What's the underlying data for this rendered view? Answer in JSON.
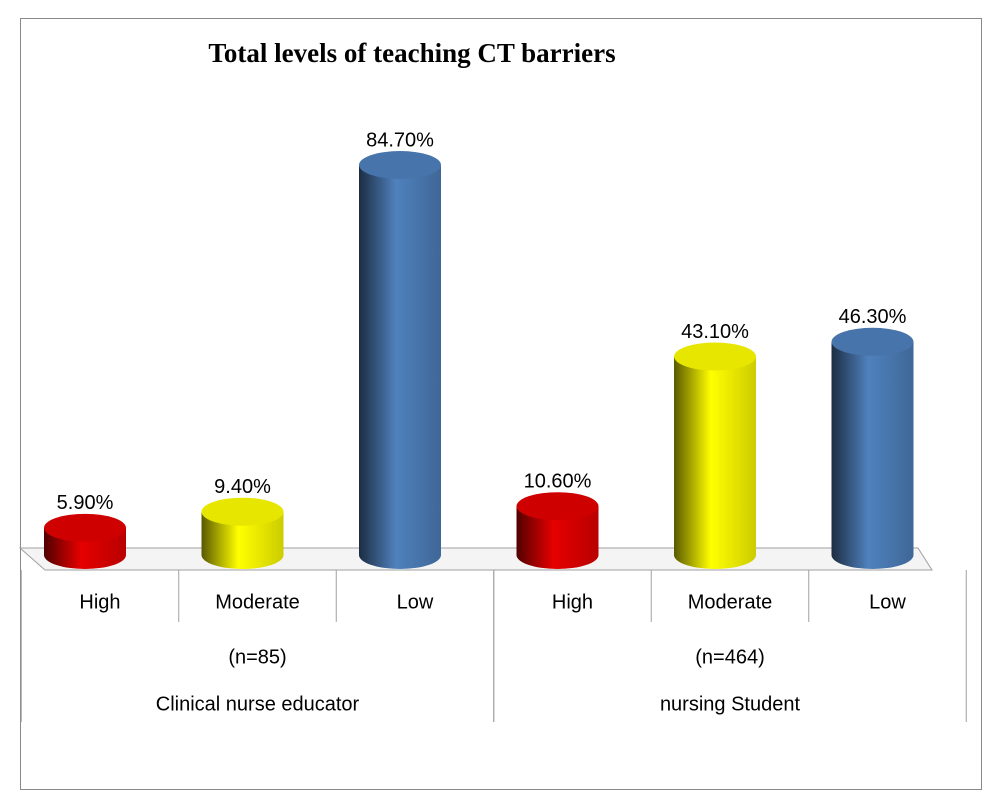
{
  "chart_data": {
    "type": "bar",
    "title": "Total levels of teaching CT barriers",
    "groups": [
      {
        "name": "Clinical nurse educator",
        "sample": "(n=85)",
        "categories": [
          "High",
          "Moderate",
          "Low"
        ],
        "values": [
          5.9,
          9.4,
          84.7
        ],
        "value_labels": [
          "5.90%",
          "9.40%",
          "84.70%"
        ],
        "colors": [
          "#e60000",
          "#ffff00",
          "#4f81bd"
        ]
      },
      {
        "name": "nursing Student",
        "sample": "(n=464)",
        "categories": [
          "High",
          "Moderate",
          "Low"
        ],
        "values": [
          10.6,
          43.1,
          46.3
        ],
        "value_labels": [
          "10.60%",
          "43.10%",
          "46.30%"
        ],
        "colors": [
          "#e60000",
          "#ffff00",
          "#4f81bd"
        ]
      }
    ]
  }
}
